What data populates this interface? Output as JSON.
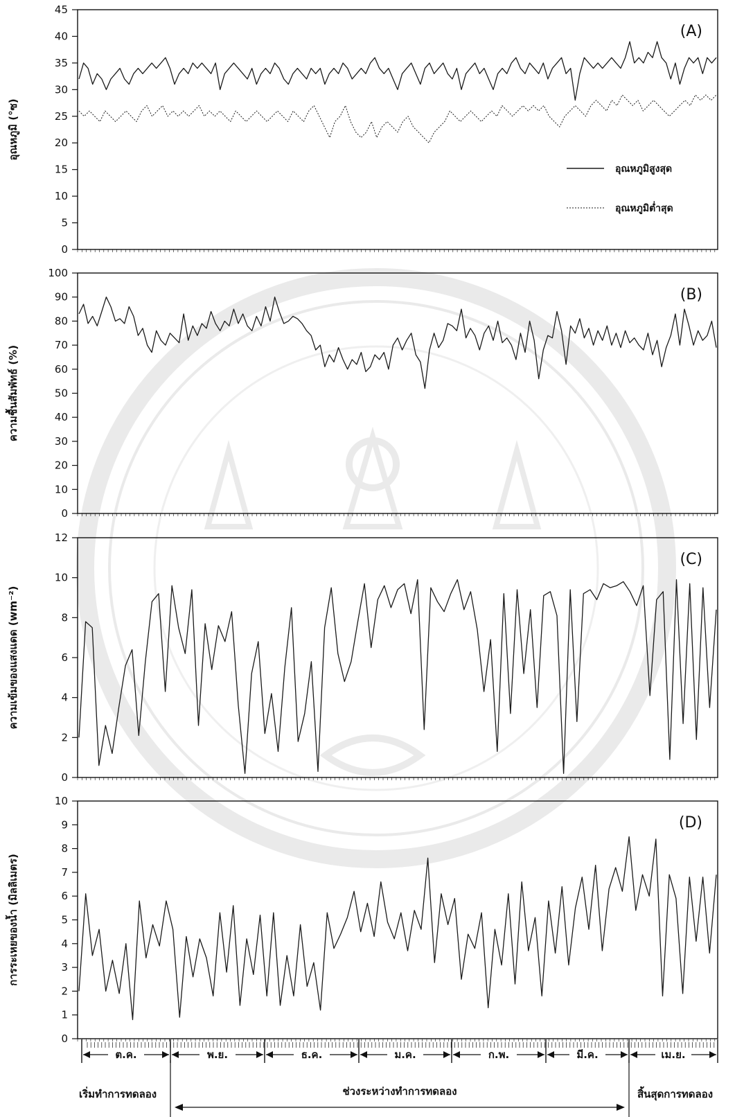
{
  "chart_data": [
    {
      "id": "A",
      "type": "line",
      "panel_label": "(A)",
      "ylabel": "อุณหภูมิ (°ซ)",
      "ylim": [
        0,
        45
      ],
      "yticks": [
        0,
        5,
        10,
        15,
        20,
        25,
        30,
        35,
        40,
        45
      ],
      "legend_position": "right",
      "series": [
        {
          "name": "อุณหภูมิสูงสุด",
          "style": "solid",
          "values": [
            32,
            35,
            34,
            31,
            33,
            32,
            30,
            32,
            33,
            34,
            32,
            31,
            33,
            34,
            33,
            34,
            35,
            34,
            35,
            36,
            34,
            31,
            33,
            34,
            33,
            35,
            34,
            35,
            34,
            33,
            35,
            30,
            33,
            34,
            35,
            34,
            33,
            32,
            34,
            31,
            33,
            34,
            33,
            35,
            34,
            32,
            31,
            33,
            34,
            33,
            32,
            34,
            33,
            34,
            31,
            33,
            34,
            33,
            35,
            34,
            32,
            33,
            34,
            33,
            35,
            36,
            34,
            33,
            34,
            32,
            30,
            33,
            34,
            35,
            33,
            31,
            34,
            35,
            33,
            34,
            35,
            33,
            32,
            34,
            30,
            33,
            34,
            35,
            33,
            34,
            32,
            30,
            33,
            34,
            33,
            35,
            36,
            34,
            33,
            35,
            34,
            33,
            35,
            32,
            34,
            35,
            36,
            33,
            34,
            28,
            33,
            36,
            35,
            34,
            35,
            34,
            35,
            36,
            35,
            34,
            36,
            39,
            35,
            36,
            35,
            37,
            36,
            39,
            36,
            35,
            32,
            35,
            31,
            34,
            36,
            35,
            36,
            33,
            36,
            35,
            36
          ]
        },
        {
          "name": "อุณหภูมิต่ำสุด",
          "style": "dotted",
          "values": [
            26,
            25,
            26,
            25,
            24,
            26,
            25,
            24,
            25,
            26,
            25,
            24,
            26,
            27,
            25,
            26,
            27,
            25,
            26,
            25,
            26,
            25,
            26,
            27,
            25,
            26,
            25,
            26,
            25,
            24,
            26,
            25,
            24,
            25,
            26,
            25,
            24,
            25,
            26,
            25,
            24,
            26,
            25,
            24,
            26,
            27,
            25,
            23,
            21,
            24,
            25,
            27,
            24,
            22,
            21,
            22,
            24,
            21,
            23,
            24,
            23,
            22,
            24,
            25,
            23,
            22,
            21,
            20,
            22,
            23,
            24,
            26,
            25,
            24,
            25,
            26,
            25,
            24,
            25,
            26,
            25,
            27,
            26,
            25,
            26,
            27,
            26,
            27,
            26,
            27,
            25,
            24,
            23,
            25,
            26,
            27,
            26,
            25,
            27,
            28,
            27,
            26,
            28,
            27,
            29,
            28,
            27,
            28,
            26,
            27,
            28,
            27,
            26,
            25,
            26,
            27,
            28,
            27,
            29,
            28,
            29,
            28,
            29
          ]
        }
      ]
    },
    {
      "id": "B",
      "type": "line",
      "panel_label": "(B)",
      "ylabel": "ความชื้นสัมพัทธ์ (%)",
      "ylim": [
        0,
        100
      ],
      "yticks": [
        0,
        10,
        20,
        30,
        40,
        50,
        60,
        70,
        80,
        90,
        100
      ],
      "series": [
        {
          "name": "",
          "style": "solid",
          "values": [
            83,
            87,
            79,
            82,
            78,
            84,
            90,
            86,
            80,
            81,
            79,
            86,
            82,
            74,
            77,
            70,
            67,
            76,
            72,
            70,
            75,
            73,
            71,
            83,
            72,
            78,
            74,
            79,
            77,
            84,
            79,
            76,
            80,
            78,
            85,
            79,
            83,
            78,
            76,
            82,
            78,
            86,
            80,
            90,
            84,
            79,
            80,
            82,
            81,
            79,
            76,
            74,
            68,
            70,
            61,
            66,
            63,
            69,
            64,
            60,
            64,
            62,
            67,
            59,
            61,
            66,
            64,
            67,
            60,
            70,
            73,
            68,
            72,
            75,
            66,
            63,
            52,
            68,
            75,
            69,
            72,
            79,
            78,
            76,
            85,
            73,
            77,
            74,
            68,
            75,
            78,
            72,
            80,
            71,
            73,
            70,
            64,
            75,
            67,
            80,
            72,
            56,
            68,
            74,
            73,
            84,
            76,
            62,
            78,
            75,
            81,
            73,
            77,
            70,
            76,
            72,
            78,
            70,
            75,
            69,
            76,
            71,
            73,
            70,
            68,
            75,
            66,
            72,
            61,
            69,
            74,
            83,
            70,
            85,
            78,
            70,
            76,
            72,
            74,
            80,
            69
          ]
        }
      ]
    },
    {
      "id": "C",
      "type": "line",
      "panel_label": "(C)",
      "ylabel": "ความเข้มของแสงแดด (wm⁻²)",
      "ylim": [
        0,
        12
      ],
      "yticks": [
        0,
        2,
        4,
        6,
        8,
        10,
        12
      ],
      "series": [
        {
          "name": "",
          "style": "solid",
          "values": [
            2,
            7.8,
            7.5,
            0.6,
            2.6,
            1.2,
            3.5,
            5.6,
            6.4,
            2.1,
            5.8,
            8.8,
            9.2,
            4.3,
            9.6,
            7.5,
            6.2,
            9.4,
            2.6,
            7.7,
            5.4,
            7.6,
            6.8,
            8.3,
            3.6,
            0.2,
            5.2,
            6.8,
            2.2,
            4.2,
            1.3,
            5.5,
            8.5,
            1.8,
            3.2,
            5.8,
            0.3,
            7.5,
            9.5,
            6.2,
            4.8,
            5.8,
            7.8,
            9.7,
            6.5,
            8.9,
            9.6,
            8.5,
            9.4,
            9.7,
            8.2,
            9.9,
            2.4,
            9.5,
            8.8,
            8.3,
            9.2,
            9.9,
            8.4,
            9.3,
            7.4,
            4.3,
            6.9,
            1.3,
            9.2,
            3.2,
            9.4,
            5.2,
            8.4,
            3.5,
            9.1,
            9.3,
            8.1,
            0.2,
            9.4,
            2.8,
            9.2,
            9.4,
            8.9,
            9.7,
            9.5,
            9.6,
            9.8,
            9.3,
            8.6,
            9.6,
            4.1,
            8.9,
            9.3,
            0.9,
            9.9,
            2.7,
            9.7,
            1.9,
            9.5,
            3.5,
            8.4
          ]
        }
      ]
    },
    {
      "id": "D",
      "type": "line",
      "panel_label": "(D)",
      "ylabel": "การระเหยของน้ำ (มิลลิเมตร)",
      "ylim": [
        0,
        10
      ],
      "yticks": [
        0,
        1,
        2,
        3,
        4,
        5,
        6,
        7,
        8,
        9,
        10
      ],
      "series": [
        {
          "name": "",
          "style": "solid",
          "values": [
            2,
            6.1,
            3.5,
            4.6,
            2,
            3.3,
            1.9,
            4,
            0.8,
            5.8,
            3.4,
            4.8,
            3.9,
            5.8,
            4.6,
            0.9,
            4.3,
            2.6,
            4.2,
            3.4,
            1.8,
            5.3,
            2.8,
            5.6,
            1.4,
            4.2,
            2.7,
            5.2,
            1.8,
            5.3,
            1.4,
            3.5,
            1.8,
            4.8,
            2.2,
            3.2,
            1.2,
            5.3,
            3.8,
            4.4,
            5.1,
            6.2,
            4.5,
            5.7,
            4.3,
            6.6,
            4.9,
            4.2,
            5.3,
            3.7,
            5.4,
            4.6,
            7.6,
            3.2,
            6.1,
            4.8,
            5.9,
            2.5,
            4.4,
            3.8,
            5.3,
            1.3,
            4.6,
            3.1,
            6.1,
            2.3,
            6.6,
            3.7,
            5.1,
            1.8,
            5.8,
            3.6,
            6.4,
            3.1,
            5.5,
            6.8,
            4.6,
            7.3,
            3.7,
            6.3,
            7.2,
            6.2,
            8.5,
            5.4,
            6.9,
            6,
            8.4,
            1.8,
            6.9,
            5.9,
            1.9,
            6.8,
            4.1,
            6.8,
            3.6,
            6.9
          ]
        }
      ]
    }
  ],
  "xaxis": {
    "months": [
      "ต.ค.",
      "พ.ย.",
      "ธ.ค.",
      "ม.ค.",
      "ก.พ.",
      "มี.ค.",
      "เม.ย."
    ],
    "phases": [
      "เริ่มทำการทดลอง",
      "ช่วงระหว่างทำการทดลอง",
      "สิ้นสุดการทดลอง"
    ]
  },
  "colors": {
    "line": "#1a1a1a",
    "axis": "#111111",
    "watermark": "#d9d9d9"
  }
}
